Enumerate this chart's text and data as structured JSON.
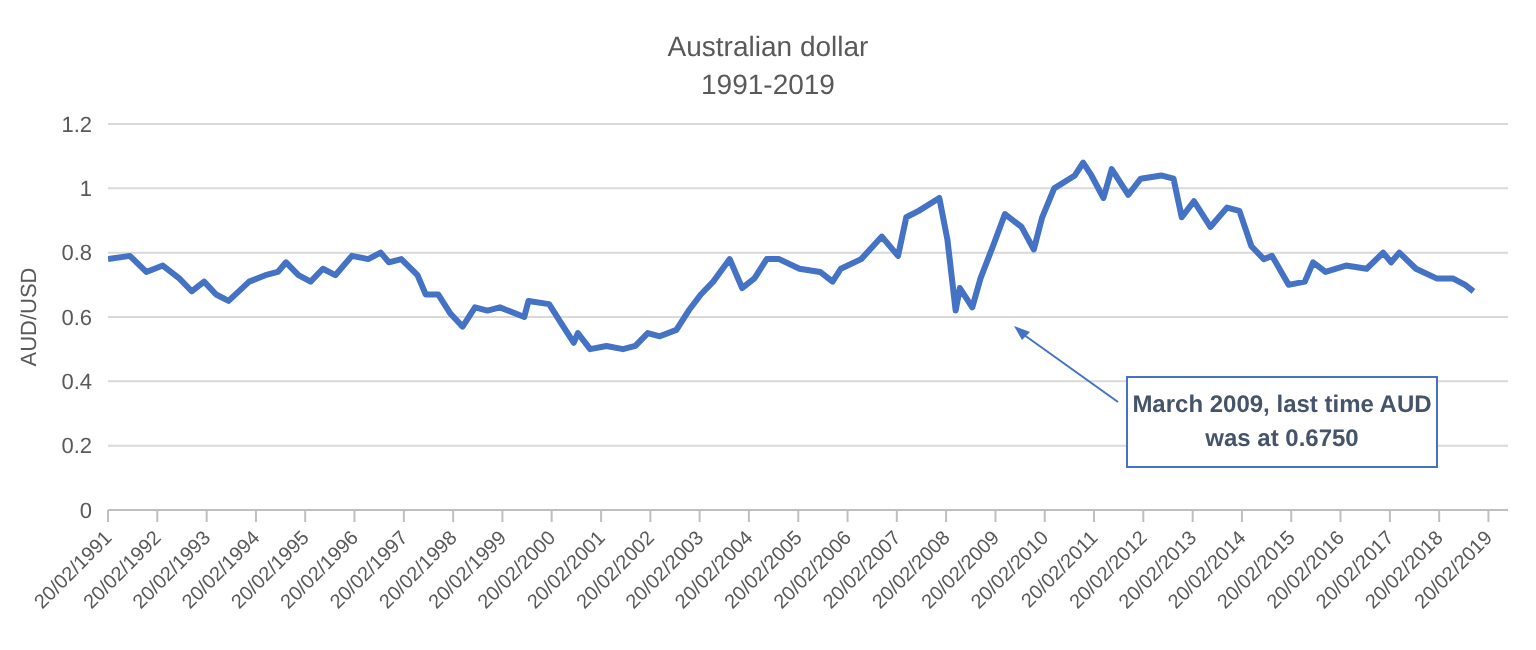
{
  "chart_data": {
    "type": "line",
    "title": "Australian dollar",
    "subtitle": "1991-2019",
    "ylabel": "AUD/USD",
    "annotations": [
      "March 2009, last time AUD was at 0.6750"
    ],
    "x": [
      "1991-02-20",
      "1991-08",
      "1991-12",
      "1992-04",
      "1992-08",
      "1992-11",
      "1993-02",
      "1993-05",
      "1993-08",
      "1994-01",
      "1994-05",
      "1994-08",
      "1994-10",
      "1995-01",
      "1995-04",
      "1995-07",
      "1995-10",
      "1996-02",
      "1996-06",
      "1996-09",
      "1996-11",
      "1997-02",
      "1997-06",
      "1997-08",
      "1997-11",
      "1998-02",
      "1998-05",
      "1998-08",
      "1998-11",
      "1999-02",
      "1999-08",
      "1999-09",
      "2000-02",
      "2000-05",
      "2000-08",
      "2000-09",
      "2000-12",
      "2001-04",
      "2001-08",
      "2001-11",
      "2002-02",
      "2002-05",
      "2002-09",
      "2002-12",
      "2003-03",
      "2003-06",
      "2003-10",
      "2004-01",
      "2004-04",
      "2004-07",
      "2004-10",
      "2005-03",
      "2005-08",
      "2005-11",
      "2006-01",
      "2006-06",
      "2006-11",
      "2007-03",
      "2007-05",
      "2007-08",
      "2008-01",
      "2008-03",
      "2008-05",
      "2008-06",
      "2008-09",
      "2008-11",
      "2009-02",
      "2009-05",
      "2009-09",
      "2009-12",
      "2010-02",
      "2010-05",
      "2010-10",
      "2010-12",
      "2011-02",
      "2011-05",
      "2011-07",
      "2011-11",
      "2012-02",
      "2012-07",
      "2012-10",
      "2012-12",
      "2013-03",
      "2013-07",
      "2013-11",
      "2014-02",
      "2014-05",
      "2014-08",
      "2014-10",
      "2015-02",
      "2015-06",
      "2015-08",
      "2015-11",
      "2016-04",
      "2016-09",
      "2017-01",
      "2017-03",
      "2017-05",
      "2017-09",
      "2018-02",
      "2018-06",
      "2018-09",
      "2018-11"
    ],
    "series": [
      {
        "color": "#4472c4",
        "values": [
          0.78,
          0.79,
          0.74,
          0.76,
          0.72,
          0.68,
          0.71,
          0.67,
          0.65,
          0.71,
          0.73,
          0.74,
          0.77,
          0.73,
          0.71,
          0.75,
          0.73,
          0.79,
          0.78,
          0.8,
          0.77,
          0.78,
          0.73,
          0.67,
          0.67,
          0.61,
          0.57,
          0.63,
          0.62,
          0.63,
          0.6,
          0.65,
          0.64,
          0.58,
          0.52,
          0.55,
          0.5,
          0.51,
          0.5,
          0.51,
          0.55,
          0.54,
          0.56,
          0.62,
          0.67,
          0.71,
          0.78,
          0.69,
          0.72,
          0.78,
          0.78,
          0.75,
          0.74,
          0.71,
          0.75,
          0.78,
          0.85,
          0.79,
          0.91,
          0.93,
          0.97,
          0.84,
          0.62,
          0.69,
          0.63,
          0.72,
          0.82,
          0.92,
          0.88,
          0.81,
          0.91,
          1.0,
          1.04,
          1.08,
          1.04,
          0.97,
          1.06,
          0.98,
          1.03,
          1.04,
          1.03,
          0.91,
          0.96,
          0.88,
          0.94,
          0.93,
          0.82,
          0.78,
          0.79,
          0.7,
          0.71,
          0.77,
          0.74,
          0.76,
          0.75,
          0.8,
          0.77,
          0.8,
          0.75,
          0.72,
          0.72,
          0.7,
          0.68
        ]
      }
    ],
    "xlim": [
      "1991-02-20",
      "2019-07-15"
    ],
    "xticks": [
      {
        "value": "1991-02-20",
        "label": "20/02/1991"
      },
      {
        "value": "1992-02-20",
        "label": "20/02/1992"
      },
      {
        "value": "1993-02-20",
        "label": "20/02/1993"
      },
      {
        "value": "1994-02-20",
        "label": "20/02/1994"
      },
      {
        "value": "1995-02-20",
        "label": "20/02/1995"
      },
      {
        "value": "1996-02-20",
        "label": "20/02/1996"
      },
      {
        "value": "1997-02-20",
        "label": "20/02/1997"
      },
      {
        "value": "1998-02-20",
        "label": "20/02/1998"
      },
      {
        "value": "1999-02-20",
        "label": "20/02/1999"
      },
      {
        "value": "2000-02-20",
        "label": "20/02/2000"
      },
      {
        "value": "2001-02-20",
        "label": "20/02/2001"
      },
      {
        "value": "2002-02-20",
        "label": "20/02/2002"
      },
      {
        "value": "2003-02-20",
        "label": "20/02/2003"
      },
      {
        "value": "2004-02-20",
        "label": "20/02/2004"
      },
      {
        "value": "2005-02-20",
        "label": "20/02/2005"
      },
      {
        "value": "2006-02-20",
        "label": "20/02/2006"
      },
      {
        "value": "2007-02-20",
        "label": "20/02/2007"
      },
      {
        "value": "2008-02-20",
        "label": "20/02/2008"
      },
      {
        "value": "2009-02-20",
        "label": "20/02/2009"
      },
      {
        "value": "2010-02-20",
        "label": "20/02/2010"
      },
      {
        "value": "2011-02-20",
        "label": "20/02/2011"
      },
      {
        "value": "2012-02-20",
        "label": "20/02/2012"
      },
      {
        "value": "2013-02-20",
        "label": "20/02/2013"
      },
      {
        "value": "2014-02-20",
        "label": "20/02/2014"
      },
      {
        "value": "2015-02-20",
        "label": "20/02/2015"
      },
      {
        "value": "2016-02-20",
        "label": "20/02/2016"
      },
      {
        "value": "2017-02-20",
        "label": "20/02/2017"
      },
      {
        "value": "2018-02-20",
        "label": "20/02/2018"
      },
      {
        "value": "2019-02-20",
        "label": "20/02/2019"
      }
    ],
    "ylim": [
      0,
      1.2
    ],
    "yticks": [
      0,
      0.2,
      0.4,
      0.6,
      0.8,
      1,
      1.2
    ],
    "grid": "y",
    "legend": false,
    "marker": "none",
    "line_style": "solid"
  }
}
